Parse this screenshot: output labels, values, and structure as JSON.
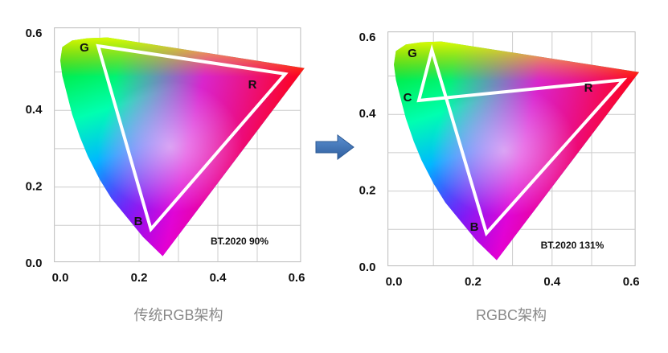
{
  "panels": [
    {
      "yticks": [
        "0.6",
        "0.4",
        "0.2",
        "0.0"
      ],
      "xticks": [
        "0.0",
        "0.2",
        "0.4",
        "0.6"
      ],
      "vertices": [
        "G",
        "R",
        "B"
      ],
      "badge": "BT.2020 90%",
      "caption": "传统RGB架构"
    },
    {
      "yticks": [
        "0.6",
        "0.4",
        "0.2",
        "0.0"
      ],
      "xticks": [
        "0.0",
        "0.2",
        "0.4",
        "0.6"
      ],
      "vertices": [
        "G",
        "C",
        "R",
        "B"
      ],
      "badge": "BT.2020 131%",
      "caption": "RGBC架构"
    }
  ]
}
